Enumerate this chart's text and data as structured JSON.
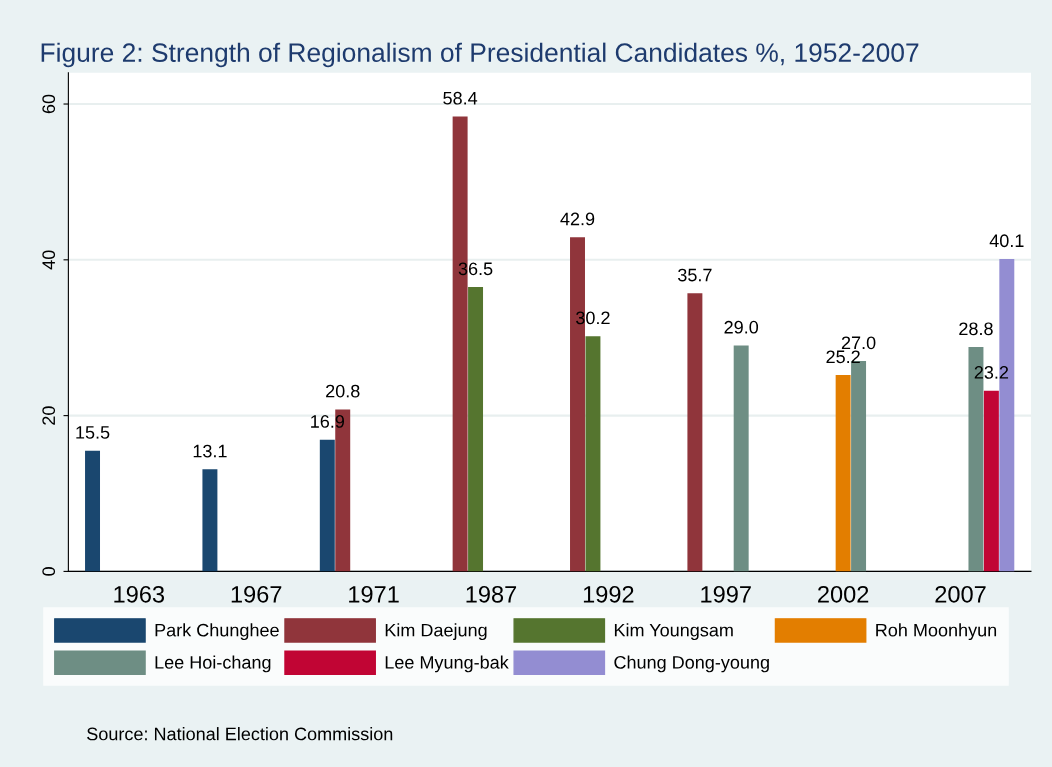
{
  "chart_data": {
    "type": "bar",
    "title": "Figure 2: Strength of Regionalism of Presidential Candidates %, 1952-2007",
    "categories": [
      "1963",
      "1967",
      "1971",
      "1987",
      "1992",
      "1997",
      "2002",
      "2007"
    ],
    "series": [
      {
        "name": "Park Chunghee",
        "color": "#1a476f",
        "values": [
          15.5,
          13.1,
          16.9,
          null,
          null,
          null,
          null,
          null
        ],
        "value_labels": [
          "15.5",
          "13.1",
          "16.9",
          null,
          null,
          null,
          null,
          null
        ]
      },
      {
        "name": "Kim Daejung",
        "color": "#90353b",
        "values": [
          null,
          null,
          20.8,
          58.4,
          42.9,
          35.7,
          null,
          null
        ],
        "value_labels": [
          null,
          null,
          "20.8",
          "58.4",
          "42.9",
          "35.7",
          null,
          null
        ]
      },
      {
        "name": "Kim Youngsam",
        "color": "#55752f",
        "values": [
          null,
          null,
          null,
          36.5,
          30.2,
          null,
          null,
          null
        ],
        "value_labels": [
          null,
          null,
          null,
          "36.5",
          "30.2",
          null,
          null,
          null
        ]
      },
      {
        "name": "Roh Moonhyun",
        "color": "#e37e00",
        "values": [
          null,
          null,
          null,
          null,
          null,
          null,
          25.2,
          null
        ],
        "value_labels": [
          null,
          null,
          null,
          null,
          null,
          null,
          "25.2",
          null
        ]
      },
      {
        "name": "Lee Hoi-chang",
        "color": "#6e8e84",
        "values": [
          null,
          null,
          null,
          null,
          null,
          29.0,
          27.0,
          28.8
        ],
        "value_labels": [
          null,
          null,
          null,
          null,
          null,
          "29.0",
          "27.0",
          "28.8"
        ]
      },
      {
        "name": "Lee Myung-bak",
        "color": "#c10534",
        "values": [
          null,
          null,
          null,
          null,
          null,
          null,
          null,
          23.2
        ],
        "value_labels": [
          null,
          null,
          null,
          null,
          null,
          null,
          null,
          "23.2"
        ]
      },
      {
        "name": "Chung Dong-young",
        "color": "#938dd2",
        "values": [
          null,
          null,
          null,
          null,
          null,
          null,
          null,
          40.1
        ],
        "value_labels": [
          null,
          null,
          null,
          null,
          null,
          null,
          null,
          "40.1"
        ]
      }
    ],
    "ylim": [
      0,
      64
    ],
    "yticks": [
      0,
      20,
      40,
      60
    ],
    "grid": "y",
    "legend": "bottom",
    "annotations": [
      "Source: National Election Commission"
    ]
  }
}
